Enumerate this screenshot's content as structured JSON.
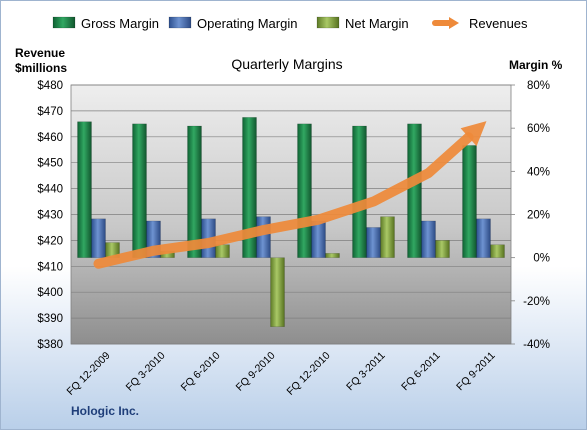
{
  "chart_data": {
    "type": "bar",
    "title": "Quarterly Margins",
    "categories": [
      "FQ 12-2009",
      "FQ 3-2010",
      "FQ 6-2010",
      "FQ 9-2010",
      "FQ 12-2010",
      "FQ 3-2011",
      "FQ 6-2011",
      "FQ 9-2011"
    ],
    "series": [
      {
        "name": "Gross Margin",
        "axis": "right",
        "color": "#1f8a4c",
        "values": [
          63,
          62,
          61,
          65,
          62,
          61,
          62,
          52
        ]
      },
      {
        "name": "Operating Margin",
        "axis": "right",
        "color": "#4a72b8",
        "values": [
          18,
          17,
          18,
          19,
          17,
          14,
          17,
          18
        ]
      },
      {
        "name": "Net Margin",
        "axis": "right",
        "color": "#8fb04a",
        "values": [
          7,
          3,
          6,
          -32,
          2,
          19,
          8,
          6
        ]
      },
      {
        "name": "Revenues",
        "axis": "left",
        "kind": "arrow",
        "color": "#ee8a3a",
        "values": [
          411,
          416,
          419,
          424,
          428,
          435,
          446,
          465
        ]
      }
    ],
    "y_left": {
      "label": "Revenue\n$millions",
      "min": 380,
      "max": 480,
      "step": 10,
      "prefix": "$"
    },
    "y_right": {
      "label": "Margin %",
      "min": -40,
      "max": 80,
      "step": 20,
      "suffix": "%"
    },
    "grid": true,
    "legend_position": "top"
  },
  "footer": {
    "company": "Hologic Inc."
  }
}
